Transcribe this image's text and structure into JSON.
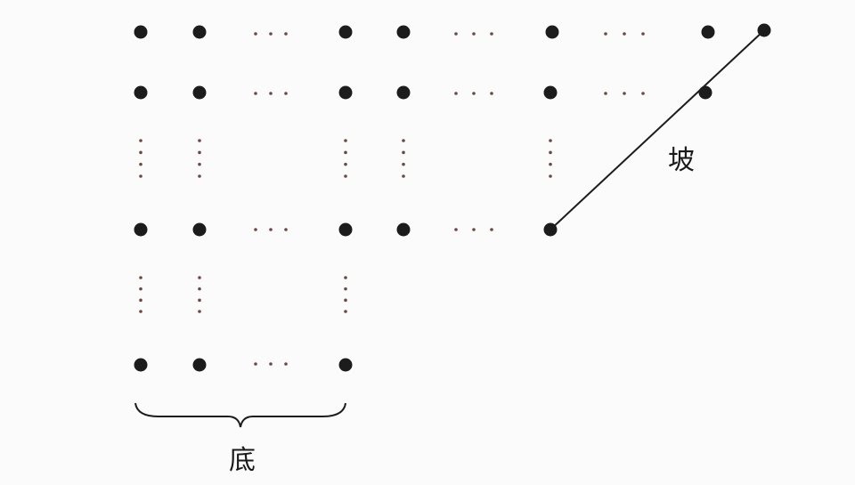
{
  "labels": {
    "slope": "坡",
    "base": "底"
  },
  "colors": {
    "dot": "#1c1c1c",
    "ellipsis_dot": "#6b4a45",
    "line": "#1c1c1c"
  }
}
